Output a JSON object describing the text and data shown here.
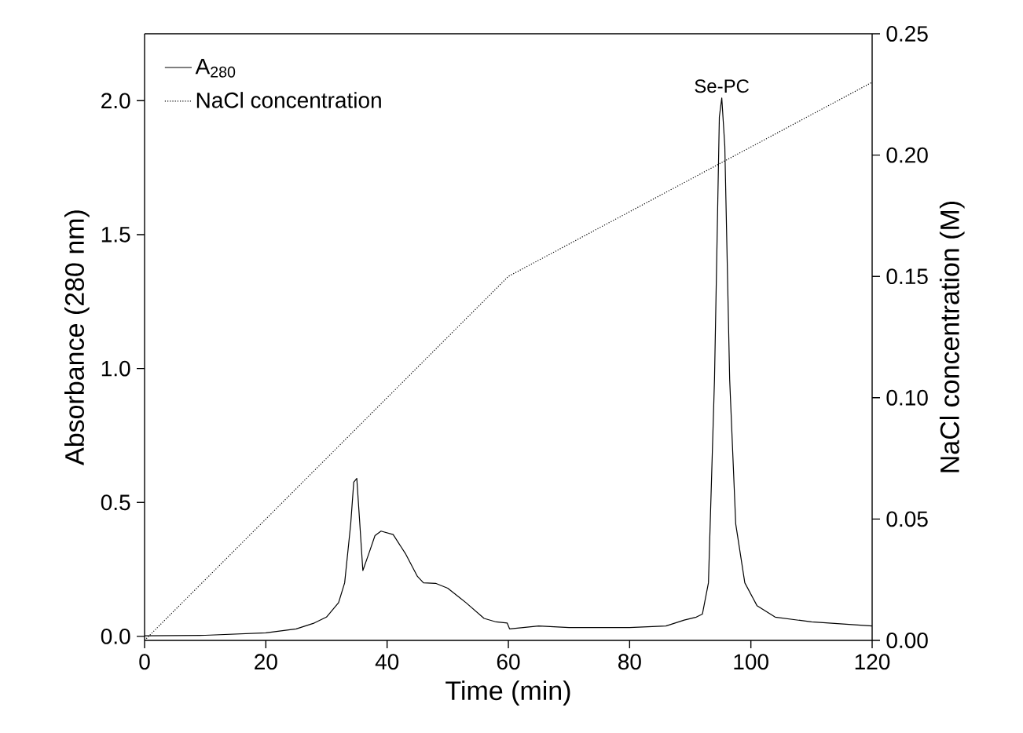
{
  "chart_data": {
    "type": "line",
    "xlabel": "Time (min)",
    "ylabel": "Absorbance (280 nm)",
    "y2label": "NaCl concentration (M)",
    "xlim": [
      0,
      120
    ],
    "xticks": [
      0,
      20,
      40,
      60,
      80,
      100,
      120
    ],
    "ylim": [
      -0.015,
      2.25
    ],
    "yticks": [
      {
        "value": 0,
        "label": "0.0"
      },
      0.5,
      {
        "value": 1,
        "label": "1.0"
      },
      1.5,
      {
        "value": 2,
        "label": "2.0"
      }
    ],
    "y2lim": [
      0,
      0.25
    ],
    "y2ticks": [
      {
        "value": 0,
        "label": "0.00"
      },
      0.05,
      {
        "value": 0.1,
        "label": "0.10"
      },
      0.15,
      {
        "value": 0.2,
        "label": "0.20"
      },
      0.25
    ],
    "legend": "top left",
    "grid": false,
    "annotations": [
      {
        "text": "Se-PC",
        "x": 95.2,
        "y": 2.01
      }
    ],
    "series": [
      {
        "name": "A$_{280}$",
        "color": "#000000",
        "line_style": "solid",
        "x": [
          0,
          10,
          20,
          25,
          28,
          30,
          32,
          33,
          34,
          34.5,
          35,
          35.5,
          36,
          37,
          38,
          39,
          41,
          43,
          45,
          46,
          48,
          50,
          53,
          56,
          58,
          59.8,
          60.2,
          65,
          70,
          80,
          86,
          89,
          91,
          92,
          93,
          94,
          94.8,
          95.2,
          95.7,
          96.5,
          97.5,
          99,
          101,
          104,
          110,
          120
        ],
        "values": [
          0.002,
          0.004,
          0.013,
          0.028,
          0.05,
          0.072,
          0.126,
          0.2,
          0.42,
          0.576,
          0.59,
          0.42,
          0.246,
          0.31,
          0.376,
          0.393,
          0.38,
          0.31,
          0.224,
          0.2,
          0.198,
          0.18,
          0.126,
          0.067,
          0.054,
          0.05,
          0.028,
          0.039,
          0.033,
          0.033,
          0.039,
          0.061,
          0.072,
          0.083,
          0.2,
          0.96,
          1.94,
          2.01,
          1.83,
          0.96,
          0.42,
          0.2,
          0.115,
          0.072,
          0.054,
          0.039
        ]
      },
      {
        "name": "NaCl concentration",
        "color": "#000000",
        "line_style": "dotted",
        "axis": "y2",
        "x": [
          0,
          60,
          120
        ],
        "values": [
          0,
          0.15,
          0.23
        ]
      }
    ]
  }
}
